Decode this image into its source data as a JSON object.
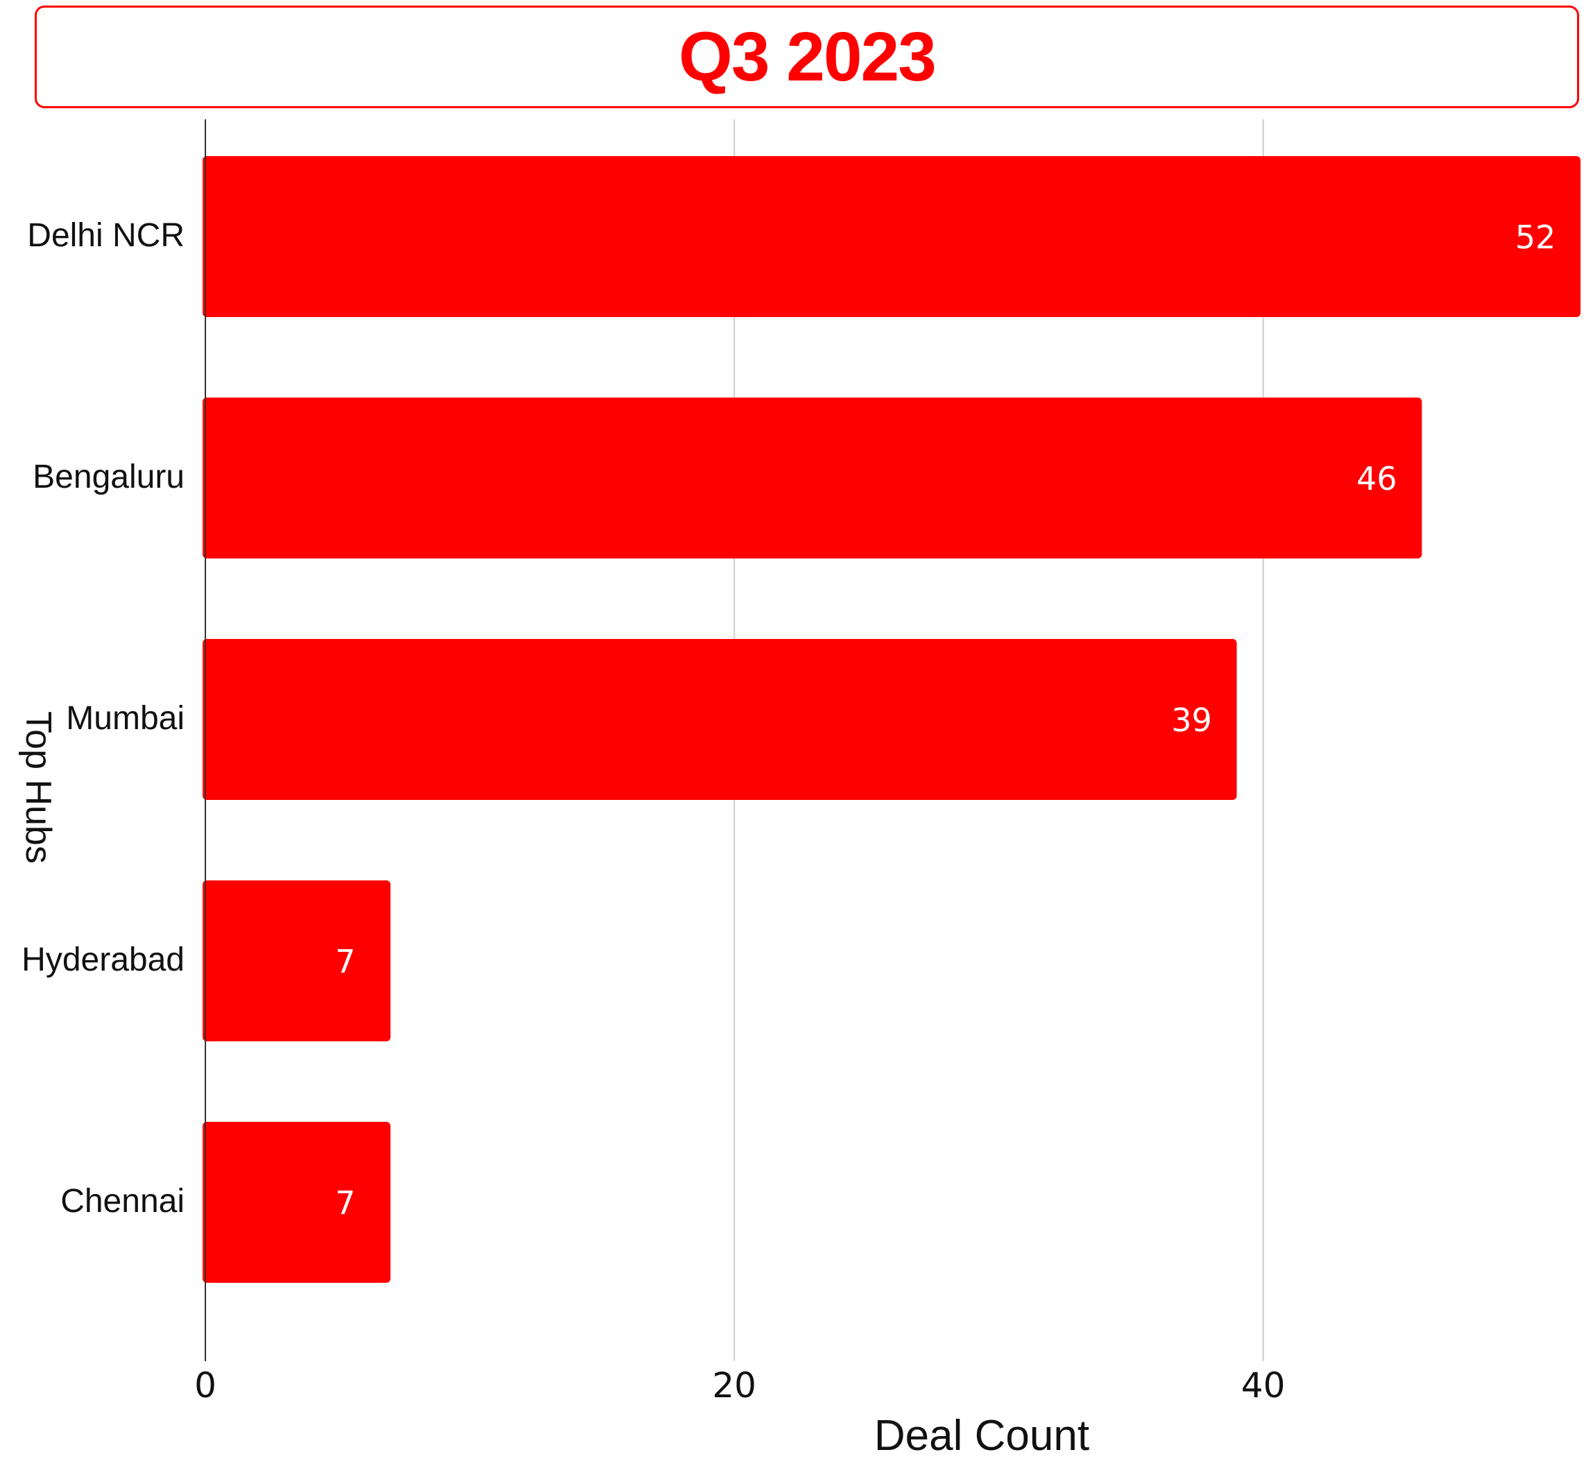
{
  "chart_data": {
    "type": "bar",
    "orientation": "horizontal",
    "title": "Q3 2023",
    "xlabel": "Deal Count",
    "ylabel": "Top Hubs",
    "categories": [
      "Delhi NCR",
      "Bengaluru",
      "Mumbai",
      "Hyderabad",
      "Chennai"
    ],
    "values": [
      52,
      46,
      39,
      7,
      7
    ],
    "xlim": [
      0,
      52
    ],
    "xticks": [
      0,
      20,
      40
    ],
    "grid": true,
    "legend": "none",
    "colors": {
      "bar": "#ff0000",
      "title": "#ff0000",
      "value_label": "#ffffff",
      "grid": "#cccccc",
      "axis": "#333333"
    }
  }
}
